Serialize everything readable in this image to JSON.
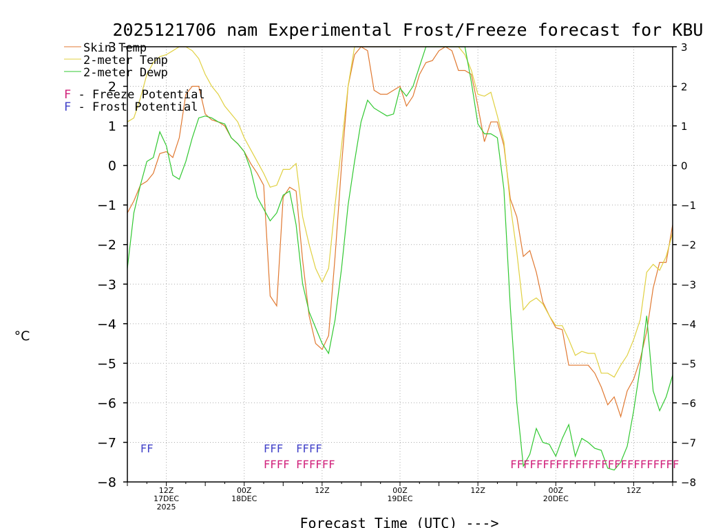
{
  "chart_data": {
    "type": "line",
    "title": "2025121706 nam Experimental Frost/Freeze forecast for KBUF",
    "xlabel": "Forecast Time (UTC) --->",
    "ylabel": "°C",
    "ylim": [
      -8,
      3
    ],
    "yticks": [
      -8,
      -7,
      -6,
      -5,
      -4,
      -3,
      -2,
      -1,
      0,
      1,
      2,
      3
    ],
    "xlim_hours": [
      0,
      84
    ],
    "xticks": [
      {
        "hour": 6,
        "l1": "12Z",
        "l2": "17DEC",
        "l3": "2025"
      },
      {
        "hour": 18,
        "l1": "00Z",
        "l2": "18DEC",
        "l3": ""
      },
      {
        "hour": 30,
        "l1": "12Z",
        "l2": "",
        "l3": ""
      },
      {
        "hour": 42,
        "l1": "00Z",
        "l2": "19DEC",
        "l3": ""
      },
      {
        "hour": 54,
        "l1": "12Z",
        "l2": "",
        "l3": ""
      },
      {
        "hour": 66,
        "l1": "00Z",
        "l2": "20DEC",
        "l3": ""
      },
      {
        "hour": 78,
        "l1": "12Z",
        "l2": "",
        "l3": ""
      }
    ],
    "legend": {
      "skin": "Skin Temp",
      "t2m": "2-meter Temp",
      "dewp": "2-meter Dewp",
      "freeze_letter": "F",
      "freeze_label": " - Freeze Potential",
      "frost_letter": "F",
      "frost_label": " - Frost Potential"
    },
    "colors": {
      "skin": "#e07830",
      "t2m": "#e0d040",
      "dewp": "#30c830",
      "freeze": "#d0207a",
      "frost": "#4040c8"
    },
    "series": [
      {
        "name": "Skin Temp",
        "key": "skin",
        "points": [
          [
            0,
            -1.2
          ],
          [
            1,
            -0.9
          ],
          [
            2,
            -0.5
          ],
          [
            3,
            -0.4
          ],
          [
            4,
            -0.2
          ],
          [
            5,
            0.3
          ],
          [
            6,
            0.35
          ],
          [
            7,
            0.2
          ],
          [
            8,
            0.7
          ],
          [
            9,
            1.8
          ],
          [
            10,
            2.0
          ],
          [
            11,
            2.0
          ],
          [
            12,
            1.3
          ],
          [
            13,
            1.15
          ],
          [
            14,
            1.1
          ],
          [
            15,
            1.0
          ],
          [
            16,
            0.7
          ],
          [
            17,
            0.55
          ],
          [
            18,
            0.35
          ],
          [
            19,
            0.05
          ],
          [
            20,
            -0.2
          ],
          [
            21,
            -0.5
          ],
          [
            22,
            -3.3
          ],
          [
            23,
            -3.55
          ],
          [
            24,
            -0.8
          ],
          [
            25,
            -0.55
          ],
          [
            26,
            -0.65
          ],
          [
            27,
            -2.4
          ],
          [
            28,
            -3.8
          ],
          [
            29,
            -4.5
          ],
          [
            30,
            -4.65
          ],
          [
            31,
            -4.3
          ],
          [
            32,
            -2.3
          ],
          [
            33,
            0.0
          ],
          [
            34,
            2.0
          ],
          [
            35,
            2.8
          ],
          [
            36,
            3.0
          ],
          [
            37,
            2.9
          ],
          [
            38,
            1.9
          ],
          [
            39,
            1.8
          ],
          [
            40,
            1.8
          ],
          [
            41,
            1.9
          ],
          [
            42,
            2.0
          ],
          [
            43,
            1.5
          ],
          [
            44,
            1.75
          ],
          [
            45,
            2.3
          ],
          [
            46,
            2.6
          ],
          [
            47,
            2.65
          ],
          [
            48,
            2.9
          ],
          [
            49,
            3.0
          ],
          [
            50,
            2.9
          ],
          [
            51,
            2.4
          ],
          [
            52,
            2.4
          ],
          [
            53,
            2.3
          ],
          [
            54,
            1.5
          ],
          [
            55,
            0.6
          ],
          [
            56,
            1.1
          ],
          [
            57,
            1.1
          ],
          [
            58,
            0.5
          ],
          [
            59,
            -0.85
          ],
          [
            60,
            -1.3
          ],
          [
            61,
            -2.3
          ],
          [
            62,
            -2.15
          ],
          [
            63,
            -2.7
          ],
          [
            64,
            -3.45
          ],
          [
            65,
            -3.8
          ],
          [
            66,
            -4.1
          ],
          [
            67,
            -4.15
          ],
          [
            68,
            -5.05
          ],
          [
            69,
            -5.05
          ],
          [
            70,
            -5.05
          ],
          [
            71,
            -5.05
          ],
          [
            72,
            -5.25
          ],
          [
            73,
            -5.6
          ],
          [
            74,
            -6.05
          ],
          [
            75,
            -5.85
          ],
          [
            76,
            -6.35
          ],
          [
            77,
            -5.7
          ],
          [
            78,
            -5.4
          ],
          [
            79,
            -4.9
          ],
          [
            80,
            -4.2
          ],
          [
            81,
            -3.1
          ],
          [
            82,
            -2.45
          ],
          [
            83,
            -2.45
          ],
          [
            84,
            -1.5
          ]
        ]
      },
      {
        "name": "2-meter Temp",
        "key": "t2m",
        "points": [
          [
            0,
            1.1
          ],
          [
            1,
            1.2
          ],
          [
            2,
            1.7
          ],
          [
            3,
            2.3
          ],
          [
            4,
            2.6
          ],
          [
            5,
            2.75
          ],
          [
            6,
            2.8
          ],
          [
            7,
            2.9
          ],
          [
            8,
            3.0
          ],
          [
            9,
            3.0
          ],
          [
            10,
            2.9
          ],
          [
            11,
            2.7
          ],
          [
            12,
            2.3
          ],
          [
            13,
            2.0
          ],
          [
            14,
            1.8
          ],
          [
            15,
            1.5
          ],
          [
            16,
            1.3
          ],
          [
            17,
            1.1
          ],
          [
            18,
            0.7
          ],
          [
            19,
            0.4
          ],
          [
            20,
            0.1
          ],
          [
            21,
            -0.2
          ],
          [
            22,
            -0.55
          ],
          [
            23,
            -0.5
          ],
          [
            24,
            -0.1
          ],
          [
            25,
            -0.1
          ],
          [
            26,
            0.05
          ],
          [
            27,
            -1.3
          ],
          [
            28,
            -2.0
          ],
          [
            29,
            -2.6
          ],
          [
            30,
            -2.95
          ],
          [
            31,
            -2.6
          ],
          [
            32,
            -1.0
          ],
          [
            33,
            0.5
          ],
          [
            34,
            2.0
          ],
          [
            35,
            3.0
          ],
          [
            36,
            3.0
          ],
          [
            37,
            3.0
          ],
          [
            38,
            3.0
          ],
          [
            39,
            3.0
          ],
          [
            40,
            3.0
          ],
          [
            41,
            3.0
          ],
          [
            42,
            3.0
          ],
          [
            43,
            3.0
          ],
          [
            44,
            3.0
          ],
          [
            45,
            3.0
          ],
          [
            46,
            3.0
          ],
          [
            47,
            3.0
          ],
          [
            48,
            3.0
          ],
          [
            49,
            3.0
          ],
          [
            50,
            3.0
          ],
          [
            51,
            3.0
          ],
          [
            52,
            2.8
          ],
          [
            53,
            2.4
          ],
          [
            54,
            1.8
          ],
          [
            55,
            1.75
          ],
          [
            56,
            1.85
          ],
          [
            57,
            1.25
          ],
          [
            58,
            0.6
          ],
          [
            59,
            -1.0
          ],
          [
            60,
            -2.2
          ],
          [
            61,
            -3.65
          ],
          [
            62,
            -3.45
          ],
          [
            63,
            -3.35
          ],
          [
            64,
            -3.5
          ],
          [
            65,
            -3.8
          ],
          [
            66,
            -4.05
          ],
          [
            67,
            -4.05
          ],
          [
            68,
            -4.4
          ],
          [
            69,
            -4.8
          ],
          [
            70,
            -4.7
          ],
          [
            71,
            -4.75
          ],
          [
            72,
            -4.75
          ],
          [
            73,
            -5.25
          ],
          [
            74,
            -5.25
          ],
          [
            75,
            -5.35
          ],
          [
            76,
            -5.05
          ],
          [
            77,
            -4.8
          ],
          [
            78,
            -4.4
          ],
          [
            79,
            -3.9
          ],
          [
            80,
            -2.7
          ],
          [
            81,
            -2.5
          ],
          [
            82,
            -2.65
          ],
          [
            83,
            -2.3
          ],
          [
            84,
            -1.7
          ]
        ]
      },
      {
        "name": "2-meter Dewp",
        "key": "dewp",
        "points": [
          [
            0,
            -2.6
          ],
          [
            1,
            -1.2
          ],
          [
            2,
            -0.5
          ],
          [
            3,
            0.1
          ],
          [
            4,
            0.2
          ],
          [
            5,
            0.85
          ],
          [
            6,
            0.5
          ],
          [
            7,
            -0.25
          ],
          [
            8,
            -0.35
          ],
          [
            9,
            0.1
          ],
          [
            10,
            0.7
          ],
          [
            11,
            1.2
          ],
          [
            12,
            1.25
          ],
          [
            13,
            1.2
          ],
          [
            14,
            1.1
          ],
          [
            15,
            1.05
          ],
          [
            16,
            0.7
          ],
          [
            17,
            0.55
          ],
          [
            18,
            0.35
          ],
          [
            19,
            -0.1
          ],
          [
            20,
            -0.8
          ],
          [
            21,
            -1.1
          ],
          [
            22,
            -1.4
          ],
          [
            23,
            -1.2
          ],
          [
            24,
            -0.75
          ],
          [
            25,
            -0.65
          ],
          [
            26,
            -1.5
          ],
          [
            27,
            -3.0
          ],
          [
            28,
            -3.7
          ],
          [
            29,
            -4.1
          ],
          [
            30,
            -4.5
          ],
          [
            31,
            -4.75
          ],
          [
            32,
            -3.9
          ],
          [
            33,
            -2.6
          ],
          [
            34,
            -1.0
          ],
          [
            35,
            0.1
          ],
          [
            36,
            1.1
          ],
          [
            37,
            1.65
          ],
          [
            38,
            1.45
          ],
          [
            39,
            1.35
          ],
          [
            40,
            1.25
          ],
          [
            41,
            1.3
          ],
          [
            42,
            1.95
          ],
          [
            43,
            1.75
          ],
          [
            44,
            2.0
          ],
          [
            45,
            2.5
          ],
          [
            46,
            3.0
          ],
          [
            47,
            3.0
          ],
          [
            48,
            3.0
          ],
          [
            49,
            3.0
          ],
          [
            50,
            3.0
          ],
          [
            51,
            3.0
          ],
          [
            52,
            3.0
          ],
          [
            53,
            2.1
          ],
          [
            54,
            1.05
          ],
          [
            55,
            0.8
          ],
          [
            56,
            0.8
          ],
          [
            57,
            0.7
          ],
          [
            58,
            -0.6
          ],
          [
            59,
            -3.6
          ],
          [
            60,
            -6.0
          ],
          [
            61,
            -7.6
          ],
          [
            62,
            -7.3
          ],
          [
            63,
            -6.65
          ],
          [
            64,
            -7.0
          ],
          [
            65,
            -7.05
          ],
          [
            66,
            -7.35
          ],
          [
            67,
            -6.9
          ],
          [
            68,
            -6.55
          ],
          [
            69,
            -7.35
          ],
          [
            70,
            -6.9
          ],
          [
            71,
            -7.0
          ],
          [
            72,
            -7.15
          ],
          [
            73,
            -7.2
          ],
          [
            74,
            -7.65
          ],
          [
            75,
            -7.7
          ],
          [
            76,
            -7.5
          ],
          [
            77,
            -7.1
          ],
          [
            78,
            -6.2
          ],
          [
            79,
            -5.1
          ],
          [
            80,
            -3.8
          ],
          [
            81,
            -5.7
          ],
          [
            82,
            -6.2
          ],
          [
            83,
            -5.85
          ],
          [
            84,
            -5.3
          ]
        ]
      }
    ],
    "frost_hours": [
      2.5,
      3.5,
      21.5,
      22.5,
      23.5,
      26.5,
      27.5,
      28.5,
      29.5
    ],
    "freeze_hours": [
      21.5,
      22.5,
      23.5,
      24.5,
      26.5,
      27.5,
      28.5,
      29.5,
      30.5,
      31.5,
      59.5,
      60.5,
      61.5,
      62.5,
      63.5,
      64.5,
      65.5,
      66.5,
      67.5,
      68.5,
      69.5,
      70.5,
      71.5,
      72.5,
      73.5,
      74.5,
      75.5,
      76.5,
      77.5,
      78.5,
      79.5,
      80.5,
      81.5,
      82.5,
      83.5,
      84.5
    ]
  }
}
